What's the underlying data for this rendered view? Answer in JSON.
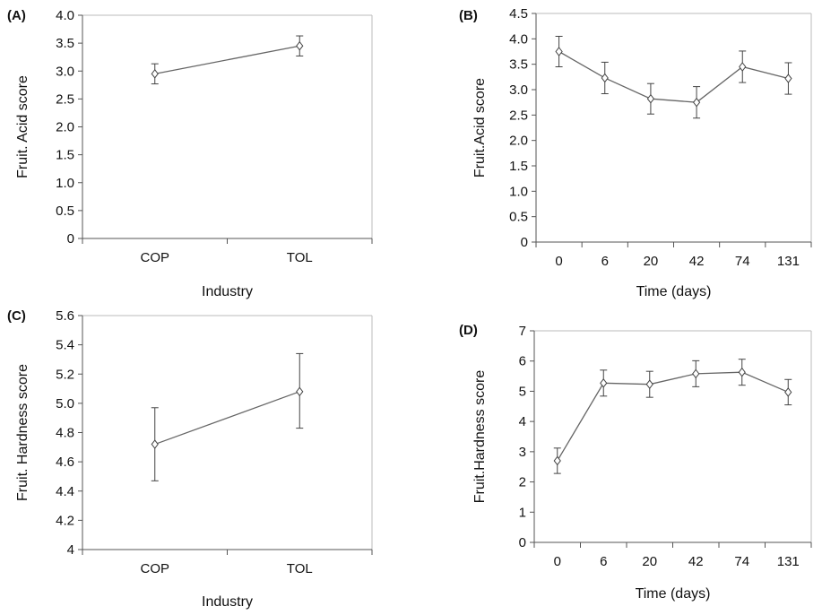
{
  "chart_data": [
    {
      "type": "line",
      "panel_label": "(A)",
      "xlabel": "Industry",
      "ylabel": "Fruit. Acid score",
      "categories": [
        "COP",
        "TOL"
      ],
      "ylim": [
        0,
        4.0
      ],
      "yticks": [
        "0",
        "0.5",
        "1.0",
        "1.5",
        "2.0",
        "2.5",
        "3.0",
        "3.5",
        "4.0"
      ],
      "series": [
        {
          "values": [
            2.95,
            3.45
          ],
          "err_low": [
            2.77,
            3.27
          ],
          "err_high": [
            3.13,
            3.63
          ]
        }
      ],
      "grid": false
    },
    {
      "type": "line",
      "panel_label": "(B)",
      "xlabel": "Time (days)",
      "ylabel": "Fruit.Acid score",
      "categories": [
        "0",
        "6",
        "20",
        "42",
        "74",
        "131"
      ],
      "ylim": [
        0,
        4.5
      ],
      "yticks": [
        "0",
        "0.5",
        "1.0",
        "1.5",
        "2.0",
        "2.5",
        "3.0",
        "3.5",
        "4.0",
        "4.5"
      ],
      "series": [
        {
          "values": [
            3.75,
            3.23,
            2.82,
            2.75,
            3.45,
            3.22
          ],
          "err_low": [
            3.45,
            2.92,
            2.52,
            2.44,
            3.14,
            2.91
          ],
          "err_high": [
            4.05,
            3.54,
            3.12,
            3.06,
            3.76,
            3.53
          ]
        }
      ],
      "grid": false
    },
    {
      "type": "line",
      "panel_label": "(C)",
      "xlabel": "Industry",
      "ylabel": "Fruit. Hardness score",
      "categories": [
        "COP",
        "TOL"
      ],
      "ylim": [
        4.0,
        5.6
      ],
      "yticks": [
        "4",
        "4.2",
        "4.4",
        "4.6",
        "4.8",
        "5.0",
        "5.2",
        "5.4",
        "5.6"
      ],
      "series": [
        {
          "values": [
            4.72,
            5.08
          ],
          "err_low": [
            4.47,
            4.83
          ],
          "err_high": [
            4.97,
            5.34
          ]
        }
      ],
      "grid": false
    },
    {
      "type": "line",
      "panel_label": "(D)",
      "xlabel": "Time (days)",
      "ylabel": "Fruit.Hardness score",
      "categories": [
        "0",
        "6",
        "20",
        "42",
        "74",
        "131"
      ],
      "ylim": [
        0,
        7
      ],
      "yticks": [
        "0",
        "1",
        "2",
        "3",
        "4",
        "5",
        "6",
        "7"
      ],
      "series": [
        {
          "values": [
            2.7,
            5.27,
            5.23,
            5.58,
            5.63,
            4.97
          ],
          "err_low": [
            2.28,
            4.84,
            4.8,
            5.15,
            5.2,
            4.55
          ],
          "err_high": [
            3.12,
            5.7,
            5.66,
            6.01,
            6.06,
            5.39
          ]
        }
      ],
      "grid": false
    }
  ]
}
